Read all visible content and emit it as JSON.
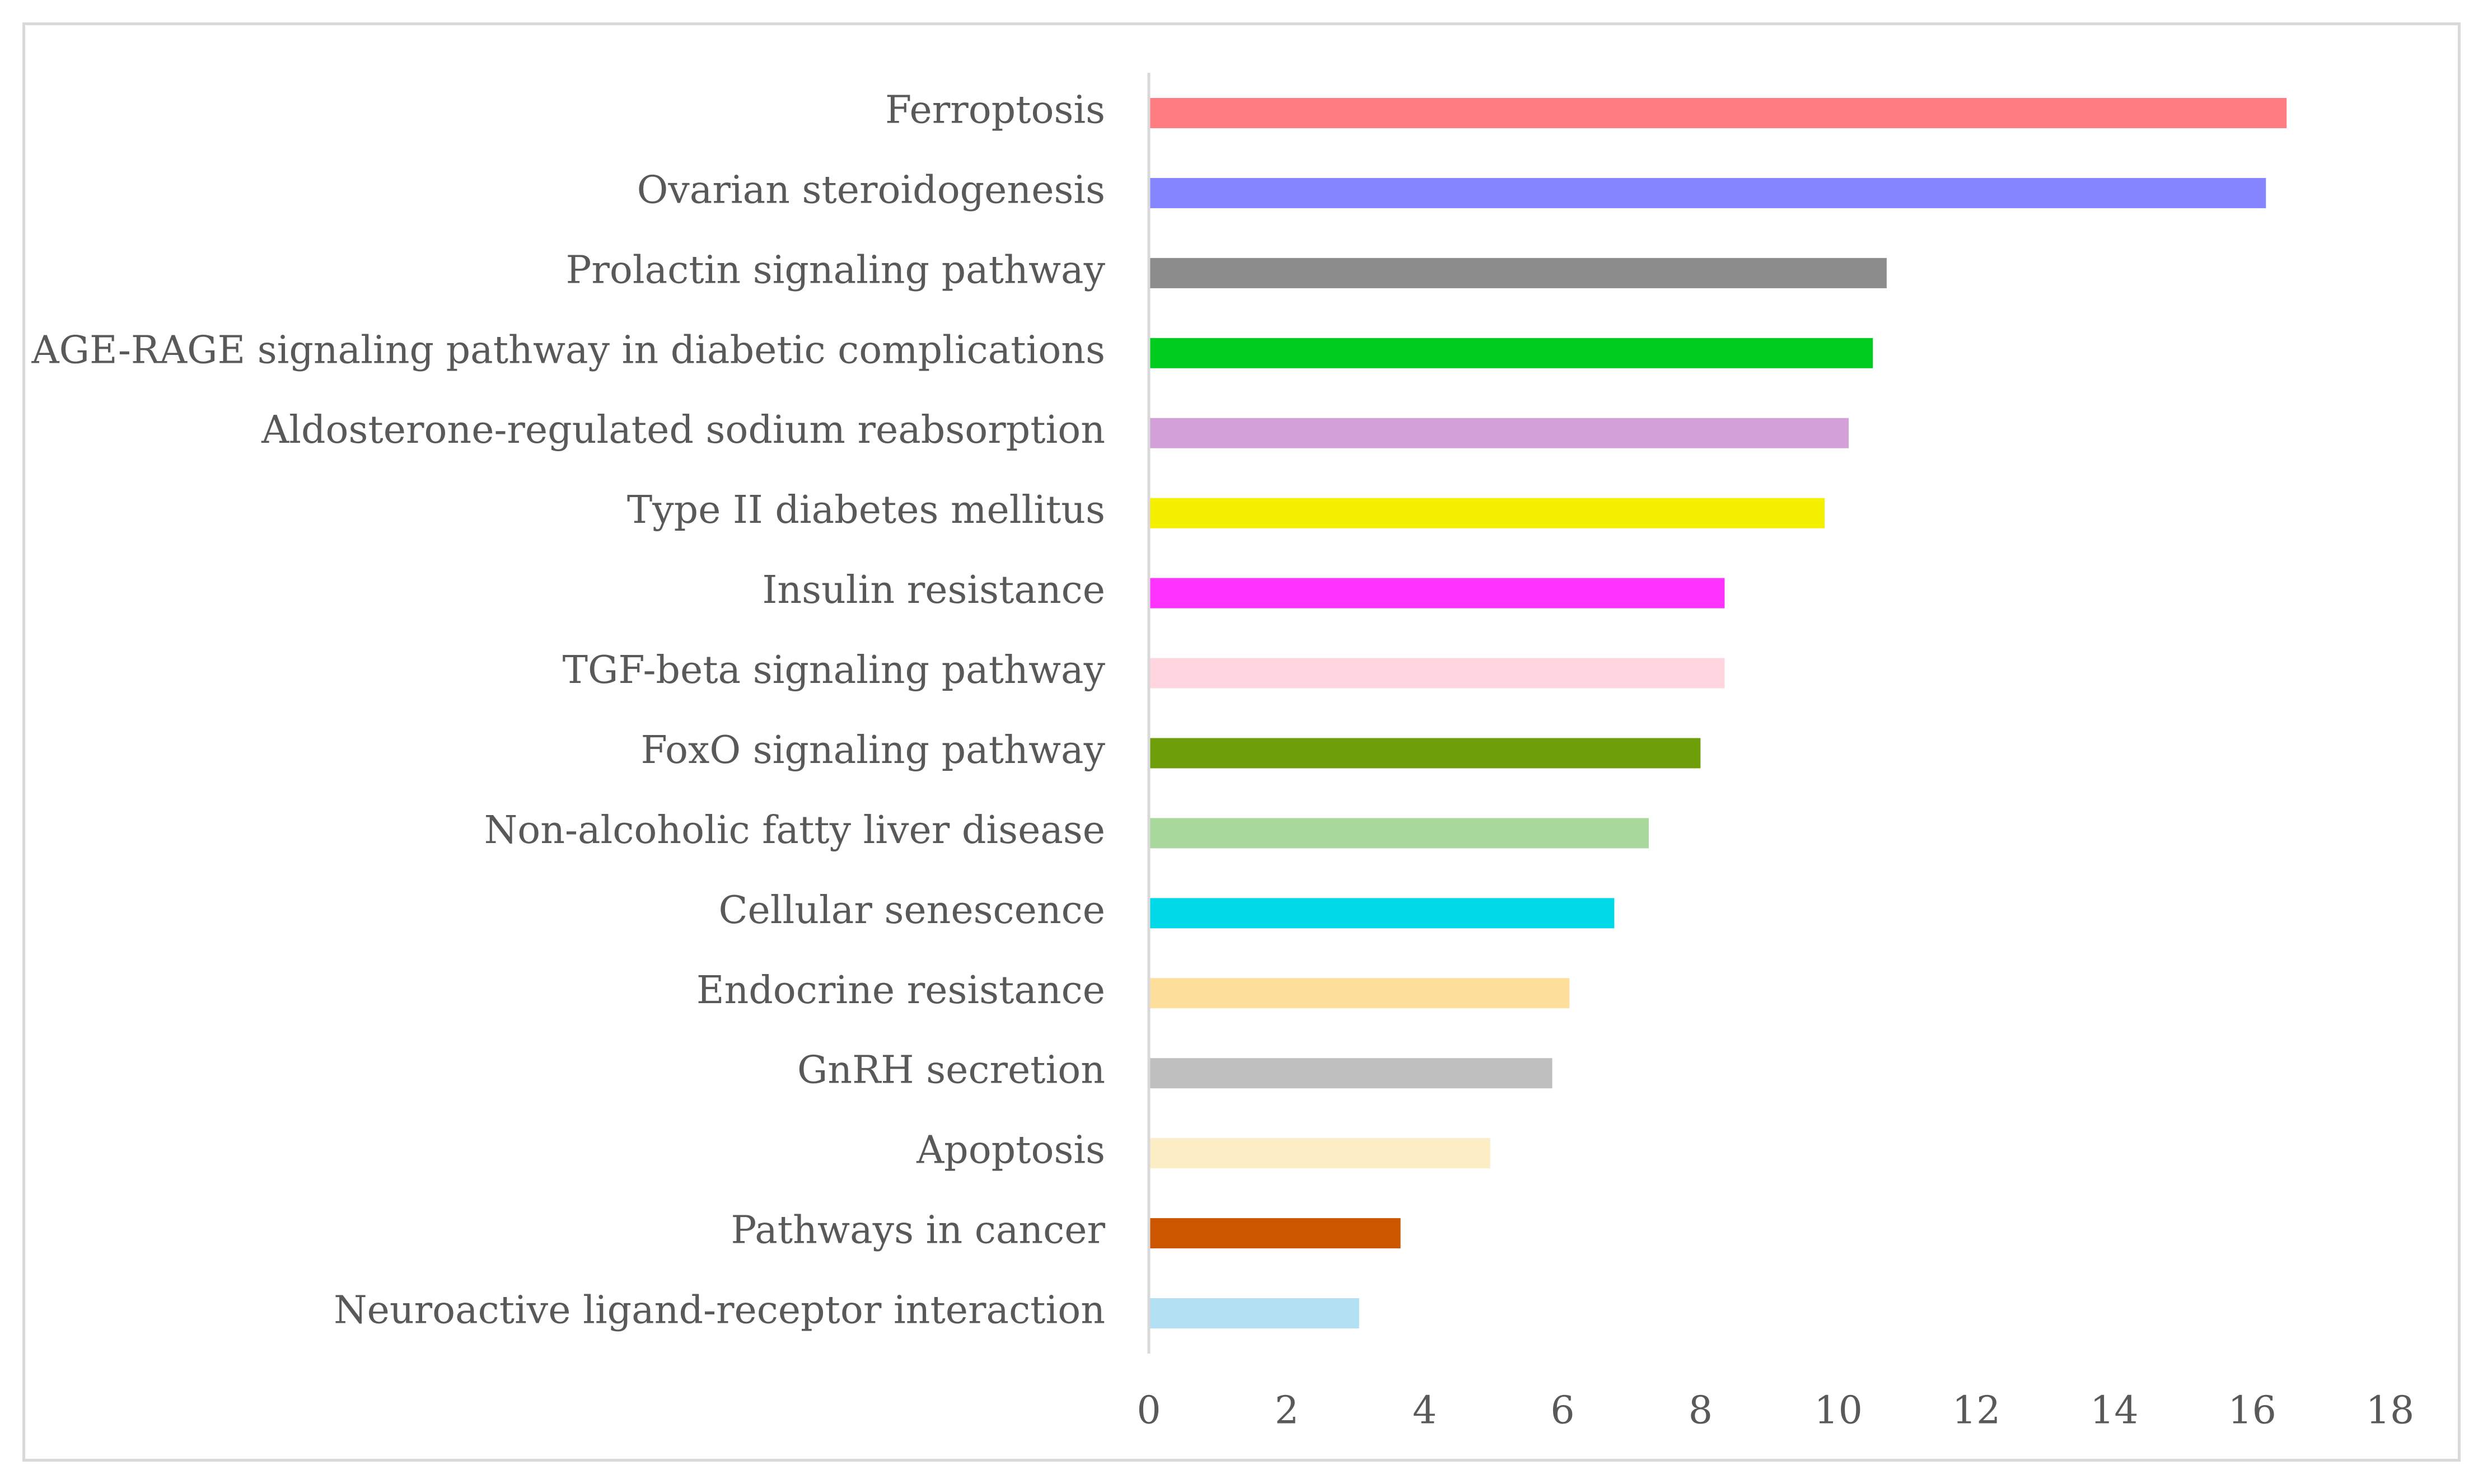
{
  "chart_data": {
    "type": "bar",
    "orientation": "horizontal",
    "title": "",
    "xlabel": "",
    "ylabel": "",
    "xlim": [
      0,
      18
    ],
    "xticks": [
      0,
      2,
      4,
      6,
      8,
      10,
      12,
      14,
      16,
      18
    ],
    "grid": false,
    "legend": "none",
    "categories": [
      "Ferroptosis",
      "Ovarian steroidogenesis",
      "Prolactin signaling pathway",
      "AGE-RAGE signaling pathway in diabetic complications",
      "Aldosterone-regulated sodium reabsorption",
      "Type II diabetes mellitus",
      "Insulin resistance",
      "TGF-beta signaling pathway",
      "FoxO signaling pathway",
      "Non-alcoholic fatty liver disease",
      "Cellular senescence",
      "Endocrine resistance",
      "GnRH secretion",
      "Apoptosis",
      "Pathways in cancer",
      "Neuroactive ligand-receptor interaction"
    ],
    "values": [
      16.5,
      16.2,
      10.7,
      10.5,
      10.15,
      9.8,
      8.35,
      8.35,
      8.0,
      7.25,
      6.75,
      6.1,
      5.85,
      4.95,
      3.65,
      3.05
    ],
    "colors": [
      "#ff7c80",
      "#8585ff",
      "#8c8c8c",
      "#00cc1f",
      "#d4a0d8",
      "#f5f000",
      "#ff33ff",
      "#ffd6e0",
      "#6e9e0a",
      "#a9d99d",
      "#00d9e8",
      "#ffdf9c",
      "#bfbfbf",
      "#fdedc4",
      "#cc5500",
      "#b3e0f2"
    ]
  }
}
